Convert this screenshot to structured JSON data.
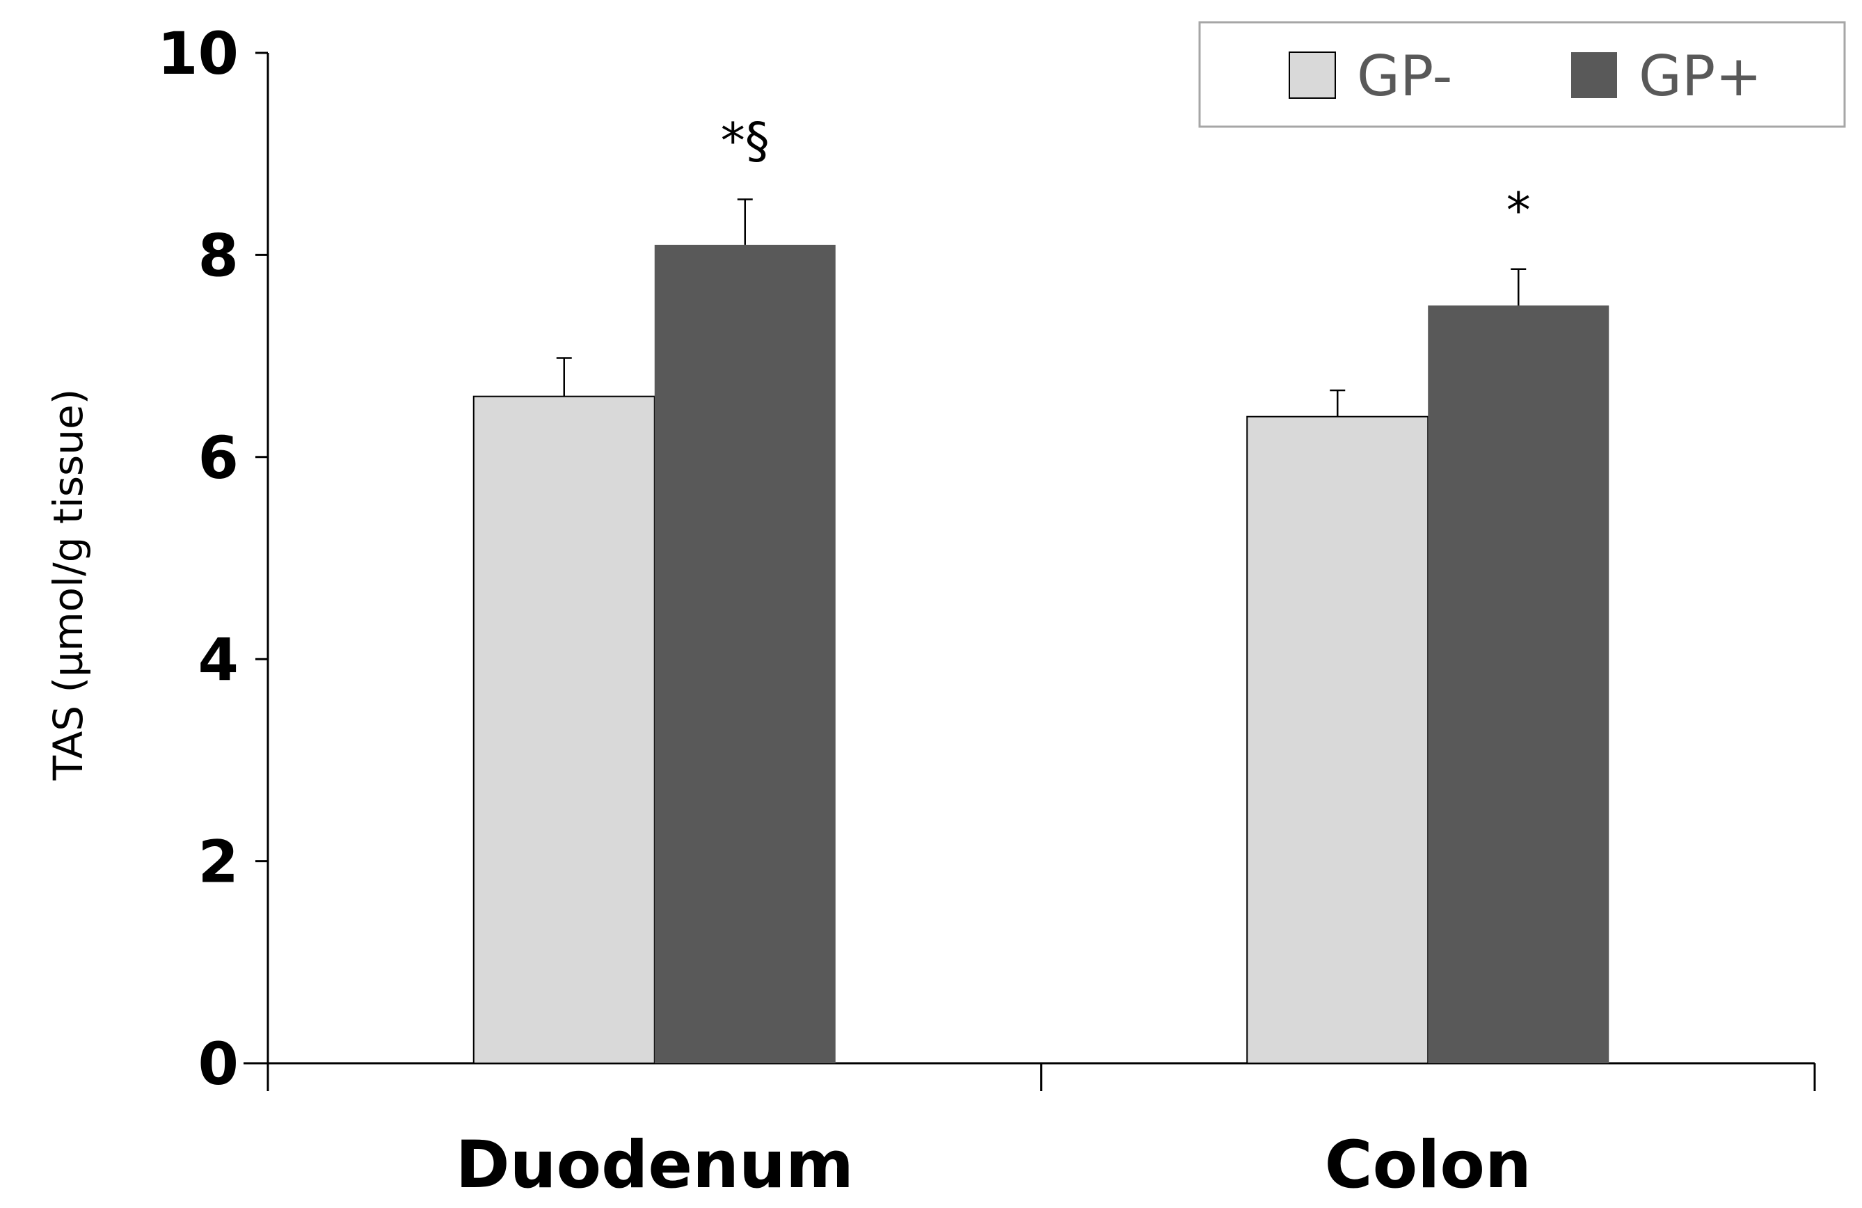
{
  "chart_data": {
    "type": "bar",
    "title": "",
    "xlabel": "",
    "ylabel": "TAS (µmol/g tissue)",
    "ylim": [
      0,
      10
    ],
    "yticks": [
      "0",
      "2",
      "4",
      "6",
      "8",
      "10"
    ],
    "grid": false,
    "legend_position": "top-right",
    "categories": [
      "Duodenum",
      "Colon"
    ],
    "series": [
      {
        "name": "GP-",
        "color": "#d9d9d9",
        "values": [
          6.6,
          6.4
        ],
        "errors": [
          0.38,
          0.26
        ]
      },
      {
        "name": "GP+",
        "color": "#595959",
        "values": [
          8.1,
          7.5
        ],
        "errors": [
          0.45,
          0.36
        ]
      }
    ],
    "annotations": [
      {
        "category": "Duodenum",
        "series": "GP+",
        "text": "*§"
      },
      {
        "category": "Colon",
        "series": "GP+",
        "text": "*"
      }
    ]
  }
}
